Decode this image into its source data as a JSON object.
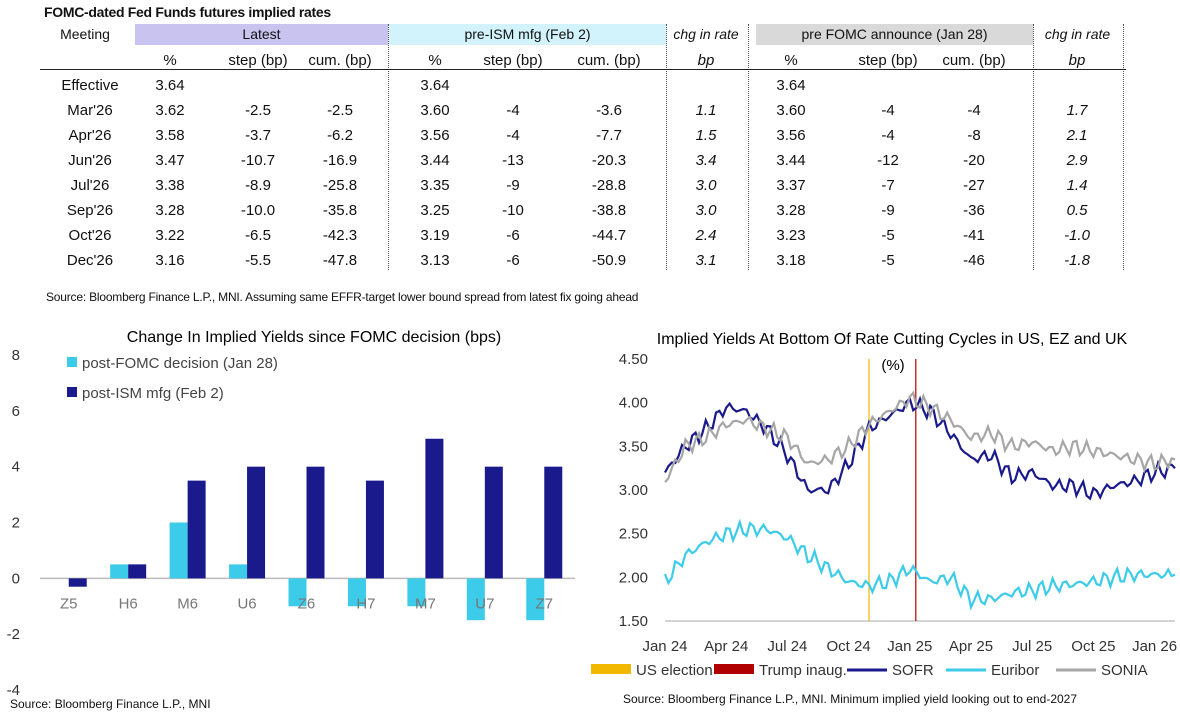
{
  "table": {
    "title": "FOMC-dated Fed Funds futures implied rates",
    "meeting_label": "Meeting",
    "groups": [
      {
        "label": "Latest",
        "subheaders": [
          "%",
          "step (bp)",
          "cum. (bp)"
        ]
      },
      {
        "label": "pre-ISM mfg (Feb 2)",
        "subheaders": [
          "%",
          "step (bp)",
          "cum. (bp)"
        ]
      },
      {
        "label": "chg in rate",
        "subheaders": [
          "bp"
        ]
      },
      {
        "label": "pre FOMC announce (Jan 28)",
        "subheaders": [
          "%",
          "step (bp)",
          "cum. (bp)"
        ]
      },
      {
        "label": "chg in rate",
        "subheaders": [
          "bp"
        ]
      }
    ],
    "rows": [
      {
        "meeting": "Effective",
        "cells": [
          "3.64",
          "",
          "",
          "3.64",
          "",
          "",
          "",
          "3.64",
          "",
          "",
          ""
        ]
      },
      {
        "meeting": "Mar'26",
        "cells": [
          "3.62",
          "-2.5",
          "-2.5",
          "3.60",
          "-4",
          "-3.6",
          "1.1",
          "3.60",
          "-4",
          "-4",
          "1.7"
        ]
      },
      {
        "meeting": "Apr'26",
        "cells": [
          "3.58",
          "-3.7",
          "-6.2",
          "3.56",
          "-4",
          "-7.7",
          "1.5",
          "3.56",
          "-4",
          "-8",
          "2.1"
        ]
      },
      {
        "meeting": "Jun'26",
        "cells": [
          "3.47",
          "-10.7",
          "-16.9",
          "3.44",
          "-13",
          "-20.3",
          "3.4",
          "3.44",
          "-12",
          "-20",
          "2.9"
        ]
      },
      {
        "meeting": "Jul'26",
        "cells": [
          "3.38",
          "-8.9",
          "-25.8",
          "3.35",
          "-9",
          "-28.8",
          "3.0",
          "3.37",
          "-7",
          "-27",
          "1.4"
        ]
      },
      {
        "meeting": "Sep'26",
        "cells": [
          "3.28",
          "-10.0",
          "-35.8",
          "3.25",
          "-10",
          "-38.8",
          "3.0",
          "3.28",
          "-9",
          "-36",
          "0.5"
        ]
      },
      {
        "meeting": "Oct'26",
        "cells": [
          "3.22",
          "-6.5",
          "-42.3",
          "3.19",
          "-6",
          "-44.7",
          "2.4",
          "3.23",
          "-5",
          "-41",
          "-1.0"
        ]
      },
      {
        "meeting": "Dec'26",
        "cells": [
          "3.16",
          "-5.5",
          "-47.8",
          "3.13",
          "-6",
          "-50.9",
          "3.1",
          "3.18",
          "-5",
          "-46",
          "-1.8"
        ]
      }
    ],
    "source": "Source: Bloomberg Finance L.P., MNI. Assuming same  EFFR-target lower bound spread from latest fix going ahead"
  },
  "chart_data": [
    {
      "type": "bar",
      "title": "Change In Implied Yields since FOMC decision (bps)",
      "categories": [
        "Z5",
        "H6",
        "M6",
        "U6",
        "Z6",
        "H7",
        "M7",
        "U7",
        "Z7"
      ],
      "series": [
        {
          "name": "post-FOMC decision (Jan 28)",
          "color": "#3ccbe8",
          "values": [
            0,
            0.5,
            2,
            0.5,
            -1,
            -1,
            -1,
            -1.5,
            -1.5
          ]
        },
        {
          "name": "post-ISM mfg (Feb 2)",
          "color": "#1a1a8c",
          "values": [
            -0.3,
            0.5,
            3.5,
            4,
            4,
            3.5,
            5,
            4,
            4
          ]
        }
      ],
      "ylim": [
        -4,
        8
      ],
      "yticks": [
        "8",
        "6",
        "4",
        "2",
        "0",
        "-2",
        "-4"
      ],
      "legend_position": "top-left",
      "source": "Source: Bloomberg Finance L.P., MNI"
    },
    {
      "type": "line",
      "title": "Implied Yields At Bottom Of Rate Cutting Cycles in US, EZ and UK",
      "ylabel": "(%)",
      "ylim": [
        1.5,
        4.5
      ],
      "yticks": [
        "4.50",
        "4.00",
        "3.50",
        "3.00",
        "2.50",
        "2.00",
        "1.50"
      ],
      "xticks": [
        "Jan 24",
        "Apr 24",
        "Jul 24",
        "Oct 24",
        "Jan 25",
        "Apr 25",
        "Jul 25",
        "Oct 25",
        "Jan 26"
      ],
      "x": [
        "Jan 24",
        "Feb 24",
        "Mar 24",
        "Apr 24",
        "May 24",
        "Jun 24",
        "Jul 24",
        "Aug 24",
        "Sep 24",
        "Oct 24",
        "Nov 24",
        "Dec 24",
        "Jan 25",
        "Feb 25",
        "Mar 25",
        "Apr 25",
        "May 25",
        "Jun 25",
        "Jul 25",
        "Aug 25",
        "Sep 25",
        "Oct 25",
        "Nov 25",
        "Dec 25",
        "Jan 26",
        "Feb 26"
      ],
      "markers": [
        {
          "name": "US election",
          "x": "Nov 24",
          "color": "#f2b800"
        },
        {
          "name": "Trump inaug.",
          "x": "Jan 25",
          "color": "#b00000"
        }
      ],
      "series": [
        {
          "name": "SOFR",
          "color": "#1a1a8c",
          "values": [
            3.2,
            3.5,
            3.7,
            3.95,
            3.9,
            3.7,
            3.4,
            3.0,
            3.0,
            3.3,
            3.7,
            3.85,
            4.0,
            3.9,
            3.65,
            3.35,
            3.4,
            3.15,
            3.2,
            3.05,
            3.05,
            2.95,
            3.05,
            3.1,
            3.2,
            3.25
          ]
        },
        {
          "name": "Euribor",
          "color": "#3ccbe8",
          "values": [
            1.95,
            2.25,
            2.4,
            2.5,
            2.55,
            2.55,
            2.45,
            2.25,
            2.1,
            1.95,
            1.9,
            1.95,
            2.1,
            1.95,
            2.0,
            1.75,
            1.75,
            1.82,
            1.85,
            1.9,
            1.92,
            1.95,
            2.0,
            2.03,
            2.03,
            2.03
          ]
        },
        {
          "name": "SONIA",
          "color": "#a6a6a6",
          "values": [
            3.1,
            3.5,
            3.6,
            3.75,
            3.8,
            3.7,
            3.6,
            3.3,
            3.35,
            3.5,
            3.75,
            3.9,
            4.05,
            3.95,
            3.8,
            3.6,
            3.65,
            3.5,
            3.55,
            3.45,
            3.5,
            3.45,
            3.4,
            3.35,
            3.3,
            3.35
          ]
        }
      ],
      "legend_position": "bottom",
      "source": "Source: Bloomberg Finance L.P., MNI. Minimum implied yield looking out to end-2027"
    }
  ]
}
